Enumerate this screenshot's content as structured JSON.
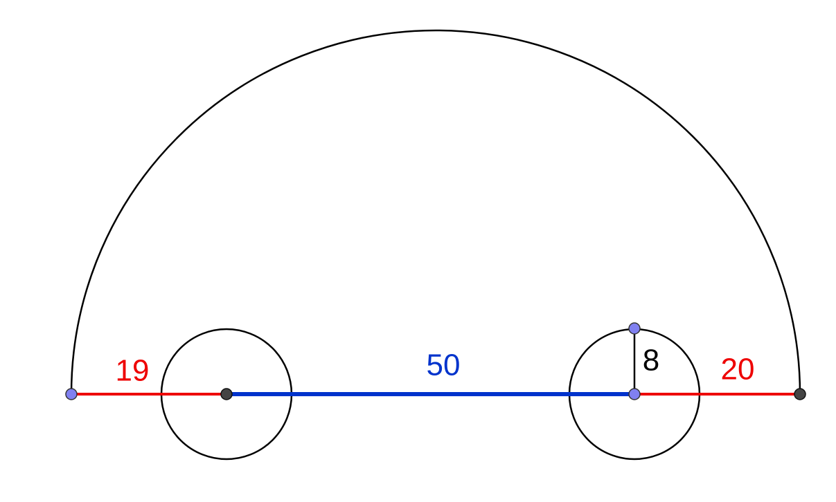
{
  "segments": [
    {
      "label": 19
    },
    {
      "label": 50
    },
    {
      "label": 8
    },
    {
      "label": 20
    }
  ]
}
